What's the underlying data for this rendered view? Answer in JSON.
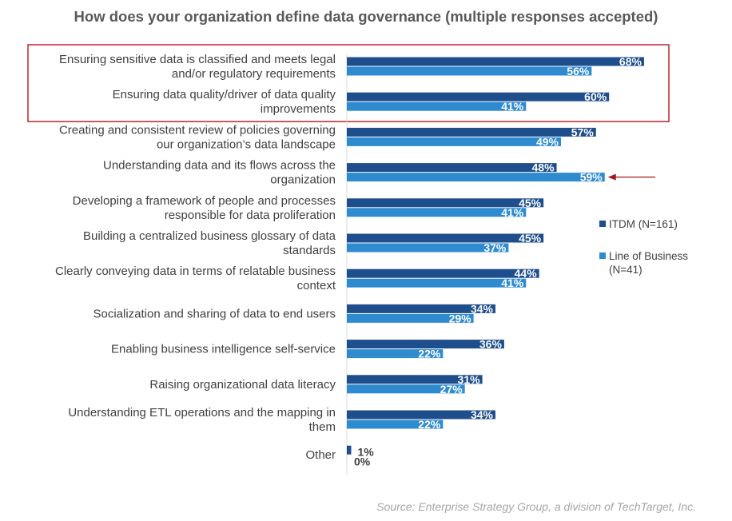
{
  "chart_data": {
    "type": "bar",
    "orientation": "horizontal",
    "title": "How does your organization define data governance (multiple responses accepted)",
    "categories": [
      [
        "Ensuring sensitive data is classified and meets legal",
        "and/or regulatory requirements"
      ],
      [
        "Ensuring data quality/driver of data quality",
        "improvements"
      ],
      [
        "Creating and consistent review of policies governing",
        "our organization’s data landscape"
      ],
      [
        "Understanding data and its flows across the",
        "organization"
      ],
      [
        "Developing a framework of people and processes",
        "responsible for data proliferation"
      ],
      [
        "Building a centralized business glossary of data",
        "standards"
      ],
      [
        "Clearly conveying data in terms of relatable business",
        "context"
      ],
      [
        "Socialization and sharing of data to end users"
      ],
      [
        "Enabling business intelligence self-service"
      ],
      [
        "Raising organizational data literacy"
      ],
      [
        "Understanding ETL operations and the mapping in",
        "them"
      ],
      [
        "Other"
      ]
    ],
    "series": [
      {
        "name": "ITDM (N=161)",
        "color": "#1f4e8c",
        "values": [
          68,
          60,
          57,
          48,
          45,
          45,
          44,
          34,
          36,
          31,
          34,
          1
        ]
      },
      {
        "name": "Line of Business (N=41)",
        "color": "#2e8bd0",
        "values": [
          56,
          41,
          49,
          59,
          41,
          37,
          41,
          29,
          22,
          27,
          22,
          0
        ]
      }
    ],
    "value_suffix": "%",
    "legend_position": "right",
    "highlight_color": "#c0262d",
    "arrow_color": "#a0161d",
    "highlighted_categories": [
      0,
      1
    ],
    "arrow_category": 3,
    "arrow_series": 1
  },
  "source": "Source: Enterprise Strategy Group, a division of TechTarget, Inc."
}
